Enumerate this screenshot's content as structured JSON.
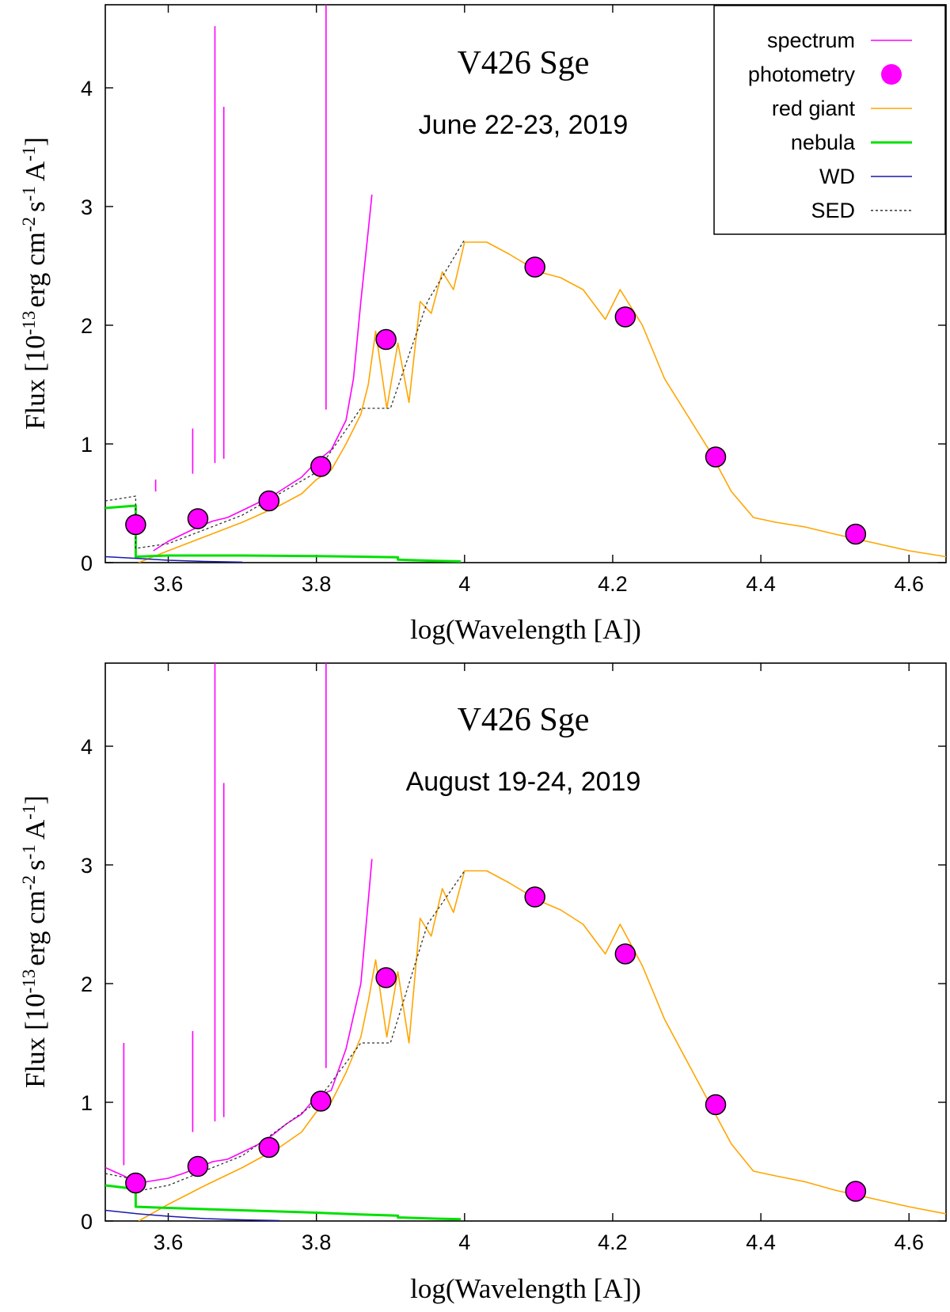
{
  "colors": {
    "spectrum": "#ff00ff",
    "photometry": "#ff00ff",
    "red_giant": "#ffa500",
    "nebula": "#00e000",
    "wd": "#1a1aa8",
    "sed": "#333333"
  },
  "chart_data": [
    {
      "type": "line",
      "title": "V426 Sge",
      "subtitle": "June 22-23, 2019",
      "xlabel": "log(Wavelength [A])",
      "ylabel": "Flux [10^-13 erg cm^-2 s^-1 A^-1]",
      "ylabel_parts": {
        "base": "Flux [10",
        "e1": "-13",
        "mid1": "erg cm",
        "e2": "-2",
        "mid2": "s",
        "e3": "-1",
        "mid3": "A",
        "e4": "-1",
        "end": "]"
      },
      "xlim": [
        3.515,
        4.65
      ],
      "ylim": [
        0,
        4.7
      ],
      "xticks": [
        3.6,
        3.8,
        4.0,
        4.2,
        4.4,
        4.6
      ],
      "xtick_labels": [
        "3.6",
        "3.8",
        "4",
        "4.2",
        "4.4",
        "4.6"
      ],
      "yticks": [
        0,
        1,
        2,
        3,
        4
      ],
      "ytick_labels": [
        "0",
        "1",
        "2",
        "3",
        "4"
      ],
      "legend": [
        "spectrum",
        "photometry",
        "red giant",
        "nebula",
        "WD",
        "SED"
      ],
      "legend_position": "top-right",
      "series": [
        {
          "name": "photometry",
          "kind": "points",
          "x": [
            3.556,
            3.64,
            3.736,
            3.806,
            3.894,
            4.095,
            4.217,
            4.339,
            4.528
          ],
          "y": [
            0.32,
            0.37,
            0.52,
            0.81,
            1.88,
            2.49,
            2.07,
            0.89,
            0.24
          ]
        },
        {
          "name": "red giant",
          "kind": "line",
          "x": [
            3.56,
            3.6,
            3.65,
            3.7,
            3.75,
            3.78,
            3.8,
            3.82,
            3.84,
            3.86,
            3.87,
            3.88,
            3.895,
            3.91,
            3.925,
            3.94,
            3.955,
            3.97,
            3.985,
            4.0,
            4.03,
            4.06,
            4.1,
            4.13,
            4.16,
            4.19,
            4.21,
            4.24,
            4.27,
            4.3,
            4.33,
            4.36,
            4.39,
            4.42,
            4.46,
            4.5,
            4.55,
            4.6,
            4.65
          ],
          "y": [
            0.0,
            0.1,
            0.22,
            0.34,
            0.48,
            0.58,
            0.7,
            0.78,
            1.0,
            1.25,
            1.5,
            1.95,
            1.3,
            1.85,
            1.35,
            2.2,
            2.1,
            2.45,
            2.3,
            2.7,
            2.7,
            2.6,
            2.45,
            2.4,
            2.3,
            2.05,
            2.3,
            2.0,
            1.55,
            1.25,
            0.95,
            0.6,
            0.38,
            0.34,
            0.3,
            0.24,
            0.17,
            0.1,
            0.05
          ]
        },
        {
          "name": "spectrum",
          "kind": "line",
          "x": [
            3.58,
            3.6,
            3.62,
            3.64,
            3.66,
            3.68,
            3.7,
            3.72,
            3.74,
            3.76,
            3.78,
            3.8,
            3.82,
            3.84,
            3.85,
            3.86,
            3.87,
            3.875
          ],
          "y": [
            0.1,
            0.18,
            0.24,
            0.3,
            0.35,
            0.38,
            0.44,
            0.5,
            0.56,
            0.64,
            0.72,
            0.85,
            0.95,
            1.2,
            1.55,
            2.2,
            2.8,
            3.1
          ]
        },
        {
          "name": "spectrum emission lines",
          "kind": "spikes",
          "x": [
            3.583,
            3.633,
            3.663,
            3.675,
            3.813
          ],
          "y": [
            0.7,
            1.13,
            4.52,
            3.84,
            4.8
          ]
        },
        {
          "name": "nebula",
          "kind": "line",
          "x": [
            3.515,
            3.556,
            3.556,
            3.6,
            3.7,
            3.8,
            3.86,
            3.91,
            3.91,
            3.96,
            3.995
          ],
          "y": [
            0.46,
            0.48,
            0.05,
            0.06,
            0.06,
            0.055,
            0.05,
            0.045,
            0.025,
            0.015,
            0.01
          ]
        },
        {
          "name": "WD",
          "kind": "line",
          "x": [
            3.515,
            3.56,
            3.6,
            3.65,
            3.7
          ],
          "y": [
            0.05,
            0.035,
            0.02,
            0.01,
            0.004
          ]
        },
        {
          "name": "SED",
          "kind": "line",
          "x": [
            3.515,
            3.556,
            3.556,
            3.6,
            3.7,
            3.8,
            3.86,
            3.9,
            3.95,
            4.0
          ],
          "y": [
            0.52,
            0.56,
            0.12,
            0.16,
            0.4,
            0.76,
            1.3,
            1.3,
            2.2,
            2.72
          ]
        }
      ]
    },
    {
      "type": "line",
      "title": "V426 Sge",
      "subtitle": "August 19-24, 2019",
      "xlabel": "log(Wavelength [A])",
      "ylabel": "Flux [10^-13 erg cm^-2 s^-1 A^-1]",
      "ylabel_parts": {
        "base": "Flux [10",
        "e1": "-13",
        "mid1": "erg cm",
        "e2": "-2",
        "mid2": "s",
        "e3": "-1",
        "mid3": "A",
        "e4": "-1",
        "end": "]"
      },
      "xlim": [
        3.515,
        4.65
      ],
      "ylim": [
        0,
        4.7
      ],
      "xticks": [
        3.6,
        3.8,
        4.0,
        4.2,
        4.4,
        4.6
      ],
      "xtick_labels": [
        "3.6",
        "3.8",
        "4",
        "4.2",
        "4.4",
        "4.6"
      ],
      "yticks": [
        0,
        1,
        2,
        3,
        4
      ],
      "ytick_labels": [
        "0",
        "1",
        "2",
        "3",
        "4"
      ],
      "series": [
        {
          "name": "photometry",
          "kind": "points",
          "x": [
            3.556,
            3.64,
            3.736,
            3.806,
            3.894,
            4.095,
            4.217,
            4.339,
            4.528
          ],
          "y": [
            0.32,
            0.46,
            0.62,
            1.01,
            2.05,
            2.73,
            2.25,
            0.98,
            0.25
          ]
        },
        {
          "name": "red giant",
          "kind": "line",
          "x": [
            3.56,
            3.6,
            3.65,
            3.7,
            3.75,
            3.78,
            3.8,
            3.82,
            3.84,
            3.86,
            3.87,
            3.88,
            3.895,
            3.91,
            3.925,
            3.94,
            3.955,
            3.97,
            3.985,
            4.0,
            4.03,
            4.06,
            4.1,
            4.13,
            4.16,
            4.19,
            4.21,
            4.24,
            4.27,
            4.3,
            4.33,
            4.36,
            4.39,
            4.42,
            4.46,
            4.5,
            4.55,
            4.6,
            4.65
          ],
          "y": [
            0.0,
            0.14,
            0.3,
            0.45,
            0.62,
            0.75,
            0.92,
            1.0,
            1.25,
            1.55,
            1.85,
            2.2,
            1.55,
            2.1,
            1.5,
            2.55,
            2.4,
            2.8,
            2.6,
            2.95,
            2.95,
            2.85,
            2.7,
            2.62,
            2.5,
            2.25,
            2.5,
            2.15,
            1.7,
            1.35,
            1.0,
            0.65,
            0.42,
            0.38,
            0.33,
            0.26,
            0.19,
            0.12,
            0.06
          ]
        },
        {
          "name": "spectrum",
          "kind": "line",
          "x": [
            3.515,
            3.54,
            3.56,
            3.58,
            3.6,
            3.62,
            3.64,
            3.66,
            3.68,
            3.7,
            3.72,
            3.74,
            3.76,
            3.78,
            3.8,
            3.82,
            3.84,
            3.86,
            3.87,
            3.875
          ],
          "y": [
            0.45,
            0.38,
            0.32,
            0.34,
            0.36,
            0.4,
            0.45,
            0.5,
            0.52,
            0.58,
            0.64,
            0.72,
            0.82,
            0.9,
            1.05,
            1.1,
            1.45,
            2.0,
            2.7,
            3.05
          ]
        },
        {
          "name": "spectrum emission lines",
          "kind": "spikes",
          "x": [
            3.54,
            3.633,
            3.663,
            3.675,
            3.813
          ],
          "y": [
            1.5,
            1.6,
            4.8,
            3.69,
            4.8
          ]
        },
        {
          "name": "nebula",
          "kind": "line",
          "x": [
            3.515,
            3.556,
            3.556,
            3.6,
            3.7,
            3.8,
            3.86,
            3.91,
            3.91,
            3.96,
            3.995
          ],
          "y": [
            0.3,
            0.27,
            0.12,
            0.11,
            0.09,
            0.07,
            0.055,
            0.045,
            0.03,
            0.02,
            0.015
          ]
        },
        {
          "name": "WD",
          "kind": "line",
          "x": [
            3.515,
            3.56,
            3.6,
            3.65,
            3.7,
            3.75
          ],
          "y": [
            0.09,
            0.06,
            0.04,
            0.02,
            0.01,
            0.003
          ]
        },
        {
          "name": "SED",
          "kind": "line",
          "x": [
            3.515,
            3.556,
            3.556,
            3.6,
            3.7,
            3.8,
            3.86,
            3.9,
            3.95,
            4.0
          ],
          "y": [
            0.4,
            0.35,
            0.25,
            0.3,
            0.55,
            1.0,
            1.5,
            1.5,
            2.5,
            2.95
          ]
        }
      ]
    }
  ]
}
